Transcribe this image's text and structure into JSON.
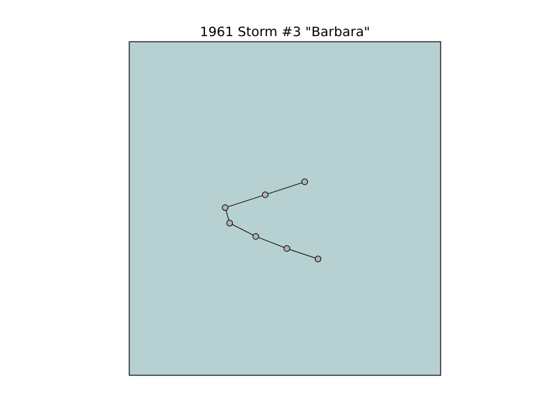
{
  "title": "1961 Storm #3 \"Barbara\"",
  "map": {
    "background_color": "#b7d1d3",
    "frame_color": "#000000"
  },
  "track": {
    "marker_fill": "#b3b3b3",
    "marker_edge": "#000000",
    "line_color": "#000000",
    "points": [
      {
        "x": 0.597,
        "y": 0.604
      },
      {
        "x": 0.548,
        "y": 0.436
      },
      {
        "x": 0.477,
        "y": 0.467
      },
      {
        "x": 0.405,
        "y": 0.498
      },
      {
        "x": 0.413,
        "y": 0.535
      },
      {
        "x": 0.46,
        "y": 0.567
      },
      {
        "x": 0.516,
        "y": 0.596
      },
      {
        "x": 0.572,
        "y": 0.621
      }
    ]
  }
}
